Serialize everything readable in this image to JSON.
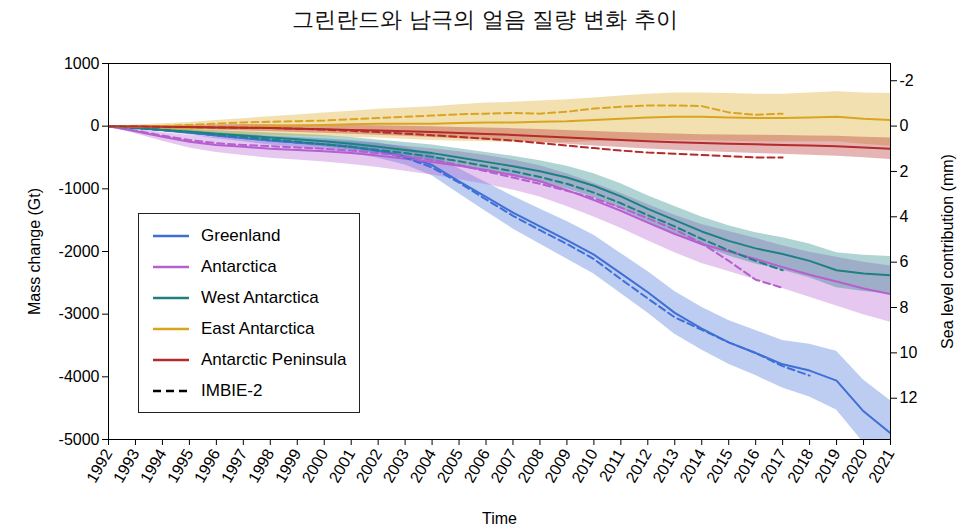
{
  "chart_data": {
    "type": "line",
    "title": "그린란드와 남극의 얼음 질량 변화 추이",
    "x_label": "Time",
    "y_label": "Mass change (Gt)",
    "y2_label": "Sea level contribution (mm)",
    "x": [
      1992,
      1993,
      1994,
      1995,
      1996,
      1997,
      1998,
      1999,
      2000,
      2001,
      2002,
      2003,
      2004,
      2005,
      2006,
      2007,
      2008,
      2009,
      2010,
      2011,
      2012,
      2013,
      2014,
      2015,
      2016,
      2017,
      2018,
      2019,
      2020,
      2021
    ],
    "xlim": [
      1992,
      2021
    ],
    "xticks": [
      1992,
      1993,
      1994,
      1995,
      1996,
      1997,
      1998,
      1999,
      2000,
      2001,
      2002,
      2003,
      2004,
      2005,
      2006,
      2007,
      2008,
      2009,
      2010,
      2011,
      2012,
      2013,
      2014,
      2015,
      2016,
      2017,
      2018,
      2019,
      2020,
      2021
    ],
    "ylim": [
      -5000,
      1000
    ],
    "yticks": [
      -5000,
      -4000,
      -3000,
      -2000,
      -1000,
      0,
      1000
    ],
    "y2lim": [
      13.82,
      -2.76
    ],
    "y2ticks": [
      -2,
      0,
      2,
      4,
      6,
      8,
      10,
      12
    ],
    "grid": false,
    "legend": "lower left",
    "series": [
      {
        "name": "Greenland",
        "color": "#3f6fd6",
        "line_style": "solid",
        "values": [
          0,
          -20,
          -60,
          -100,
          -150,
          -190,
          -230,
          -260,
          -290,
          -330,
          -390,
          -480,
          -620,
          -880,
          -1130,
          -1380,
          -1600,
          -1820,
          -2050,
          -2350,
          -2650,
          -2980,
          -3230,
          -3450,
          -3620,
          -3800,
          -3900,
          -4060,
          -4550,
          -4900
        ],
        "uncertainty": [
          0,
          20,
          30,
          40,
          50,
          60,
          70,
          80,
          90,
          100,
          120,
          140,
          170,
          200,
          230,
          260,
          280,
          300,
          310,
          320,
          330,
          340,
          340,
          350,
          360,
          380,
          420,
          470,
          500,
          520
        ]
      },
      {
        "name": "Antarctica",
        "color": "#b55fd0",
        "line_style": "solid",
        "values": [
          0,
          -80,
          -170,
          -250,
          -300,
          -330,
          -360,
          -380,
          -400,
          -430,
          -470,
          -520,
          -570,
          -630,
          -700,
          -780,
          -880,
          -1020,
          -1180,
          -1350,
          -1540,
          -1720,
          -1880,
          -2000,
          -2120,
          -2250,
          -2370,
          -2480,
          -2590,
          -2680
        ],
        "uncertainty": [
          0,
          40,
          70,
          100,
          120,
          140,
          150,
          160,
          170,
          180,
          190,
          200,
          210,
          220,
          230,
          240,
          250,
          260,
          270,
          280,
          290,
          300,
          310,
          320,
          330,
          340,
          360,
          390,
          420,
          450
        ]
      },
      {
        "name": "West Antarctica",
        "color": "#1d8181",
        "line_style": "solid",
        "values": [
          0,
          -30,
          -60,
          -90,
          -120,
          -150,
          -180,
          -210,
          -240,
          -280,
          -330,
          -380,
          -430,
          -500,
          -570,
          -640,
          -720,
          -820,
          -950,
          -1120,
          -1320,
          -1500,
          -1680,
          -1830,
          -1950,
          -2040,
          -2150,
          -2300,
          -2350,
          -2380
        ],
        "uncertainty": [
          0,
          20,
          30,
          40,
          50,
          60,
          70,
          80,
          90,
          100,
          110,
          120,
          130,
          140,
          150,
          160,
          170,
          180,
          190,
          200,
          210,
          220,
          230,
          240,
          250,
          260,
          270,
          280,
          290,
          300
        ]
      },
      {
        "name": "East Antarctica",
        "color": "#d9a520",
        "line_style": "solid",
        "values": [
          0,
          -10,
          -20,
          -30,
          -20,
          -10,
          0,
          10,
          20,
          30,
          40,
          40,
          40,
          50,
          60,
          60,
          70,
          80,
          100,
          120,
          140,
          150,
          150,
          140,
          130,
          130,
          140,
          150,
          120,
          100
        ],
        "uncertainty": [
          0,
          30,
          60,
          90,
          110,
          130,
          150,
          170,
          190,
          210,
          230,
          250,
          270,
          290,
          310,
          320,
          330,
          340,
          350,
          360,
          370,
          380,
          380,
          380,
          380,
          380,
          390,
          400,
          410,
          420
        ]
      },
      {
        "name": "Antarctic Peninsula",
        "color": "#b52a2a",
        "line_style": "solid",
        "values": [
          0,
          -5,
          -10,
          -15,
          -20,
          -25,
          -30,
          -40,
          -50,
          -60,
          -70,
          -80,
          -95,
          -110,
          -125,
          -140,
          -160,
          -180,
          -200,
          -220,
          -240,
          -255,
          -270,
          -280,
          -290,
          -300,
          -310,
          -320,
          -340,
          -360
        ],
        "uncertainty": [
          0,
          10,
          20,
          30,
          40,
          50,
          55,
          60,
          65,
          70,
          75,
          80,
          85,
          90,
          95,
          100,
          105,
          110,
          115,
          120,
          125,
          130,
          135,
          140,
          145,
          150,
          155,
          160,
          165,
          170
        ]
      },
      {
        "name": "IMBIE-2",
        "color": "#3f6fd6",
        "line_style": "dashed",
        "values": [
          0,
          -20,
          -60,
          -100,
          -150,
          -190,
          -230,
          -260,
          -290,
          -330,
          -400,
          -500,
          -660,
          -900,
          -1170,
          -1430,
          -1660,
          -1880,
          -2120,
          -2440,
          -2750,
          -3050,
          -3250,
          -3450,
          -3620,
          -3830,
          -3980,
          null,
          null,
          null
        ]
      },
      {
        "name": "IMBIE-2",
        "color": "#b55fd0",
        "line_style": "dashed",
        "values": [
          0,
          -70,
          -150,
          -220,
          -270,
          -300,
          -320,
          -340,
          -360,
          -390,
          -430,
          -480,
          -540,
          -620,
          -720,
          -820,
          -920,
          -1030,
          -1150,
          -1300,
          -1470,
          -1650,
          -1870,
          -2150,
          -2450,
          -2580,
          null,
          null,
          null,
          null
        ]
      },
      {
        "name": "IMBIE-2",
        "color": "#1d8181",
        "line_style": "dashed",
        "values": [
          0,
          -30,
          -60,
          -90,
          -130,
          -170,
          -210,
          -250,
          -290,
          -330,
          -380,
          -430,
          -490,
          -560,
          -640,
          -720,
          -810,
          -920,
          -1060,
          -1230,
          -1420,
          -1600,
          -1800,
          -1980,
          -2150,
          -2300,
          null,
          null,
          null,
          null
        ]
      },
      {
        "name": "IMBIE-2",
        "color": "#d9a520",
        "line_style": "dashed",
        "values": [
          0,
          -10,
          0,
          20,
          40,
          60,
          70,
          80,
          90,
          110,
          130,
          150,
          170,
          190,
          200,
          210,
          200,
          230,
          280,
          310,
          330,
          330,
          320,
          220,
          180,
          200,
          null,
          null,
          null,
          null
        ]
      },
      {
        "name": "IMBIE-2",
        "color": "#b52a2a",
        "line_style": "dashed",
        "values": [
          0,
          -5,
          -10,
          -15,
          -20,
          -25,
          -30,
          -40,
          -55,
          -75,
          -95,
          -120,
          -145,
          -170,
          -200,
          -230,
          -270,
          -310,
          -350,
          -390,
          -420,
          -440,
          -460,
          -480,
          -500,
          -500,
          null,
          null,
          null,
          null
        ]
      }
    ]
  }
}
